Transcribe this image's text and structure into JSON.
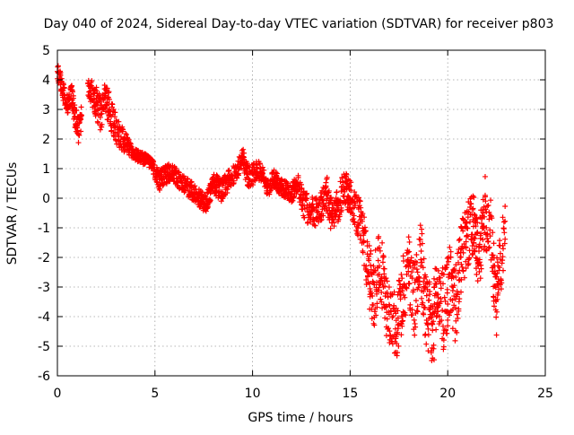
{
  "chart_data": {
    "type": "scatter",
    "title": "Day 040 of 2024, Sidereal Day-to-day VTEC variation (SDTVAR) for receiver p803",
    "xlabel": "GPS time / hours",
    "ylabel": "SDTVAR / TECUs",
    "xlim": [
      0,
      25
    ],
    "ylim": [
      -6,
      5
    ],
    "xticks": [
      0,
      5,
      10,
      15,
      20,
      25
    ],
    "yticks": [
      -6,
      -5,
      -4,
      -3,
      -2,
      -1,
      0,
      1,
      2,
      3,
      4,
      5
    ],
    "grid": true,
    "marker": "+",
    "color": "#ff0000",
    "series": [
      {
        "name": "SDTVAR",
        "trace_x": [
          0.0,
          0.15,
          0.3,
          0.45,
          0.55,
          0.7,
          0.9,
          1.1,
          1.5,
          1.9,
          2.2,
          2.5,
          2.8,
          3.1,
          3.4,
          3.7,
          3.9,
          4.8,
          5.2,
          5.8,
          6.4,
          7.0,
          7.6,
          8.0,
          8.4,
          8.8,
          9.2,
          9.5,
          9.7,
          9.9,
          10.2,
          10.5,
          10.8,
          11.1,
          11.4,
          11.7,
          12.0,
          12.3,
          12.6,
          12.9,
          13.2,
          13.5,
          13.8,
          14.1,
          14.4,
          14.7,
          15.0,
          15.3,
          15.6,
          15.9,
          16.2,
          16.5,
          16.8,
          17.1,
          17.4,
          17.7,
          18.0,
          18.3,
          18.6,
          18.9,
          19.2,
          19.5,
          19.8,
          20.1,
          20.4,
          20.7,
          21.0,
          21.3,
          21.6,
          21.9,
          22.2,
          22.5,
          22.8,
          22.95
        ],
        "trace_y": [
          4.3,
          4.0,
          3.6,
          3.3,
          3.1,
          3.6,
          2.8,
          2.2,
          3.8,
          3.4,
          2.9,
          3.4,
          2.7,
          2.2,
          1.9,
          1.7,
          1.5,
          1.2,
          0.6,
          0.9,
          0.5,
          0.2,
          -0.2,
          0.5,
          0.3,
          0.6,
          0.9,
          1.4,
          0.8,
          0.7,
          1.0,
          0.8,
          0.3,
          0.7,
          0.4,
          0.3,
          0.1,
          0.6,
          -0.2,
          -0.4,
          -0.5,
          -0.3,
          0.2,
          -0.8,
          -0.2,
          0.3,
          0.1,
          -0.4,
          -0.9,
          -2.4,
          -3.3,
          -2.1,
          -3.4,
          -3.9,
          -4.2,
          -3.2,
          -2.4,
          -3.4,
          -2.0,
          -3.8,
          -4.6,
          -3.0,
          -3.8,
          -2.8,
          -3.6,
          -2.0,
          -1.3,
          -0.9,
          -2.1,
          -0.4,
          -1.2,
          -3.4,
          -1.8,
          -0.5
        ],
        "trace_spread": [
          0.3,
          0.3,
          0.3,
          0.3,
          0.3,
          0.4,
          0.4,
          0.5,
          0.3,
          0.5,
          0.6,
          0.6,
          0.6,
          0.5,
          0.4,
          0.3,
          0.2,
          0.2,
          0.35,
          0.3,
          0.3,
          0.3,
          0.3,
          0.35,
          0.4,
          0.35,
          0.3,
          0.3,
          0.4,
          0.4,
          0.35,
          0.3,
          0.3,
          0.3,
          0.3,
          0.3,
          0.3,
          0.4,
          0.5,
          0.5,
          0.5,
          0.5,
          0.6,
          0.6,
          0.6,
          0.6,
          0.6,
          0.7,
          0.8,
          1.0,
          1.2,
          1.2,
          1.2,
          1.2,
          1.2,
          1.2,
          1.2,
          1.3,
          1.4,
          1.4,
          1.4,
          1.4,
          1.4,
          1.4,
          1.3,
          1.2,
          1.1,
          1.1,
          1.1,
          1.2,
          1.2,
          1.3,
          1.2,
          1.0
        ],
        "gap": [
          1.25,
          1.55
        ]
      }
    ]
  }
}
